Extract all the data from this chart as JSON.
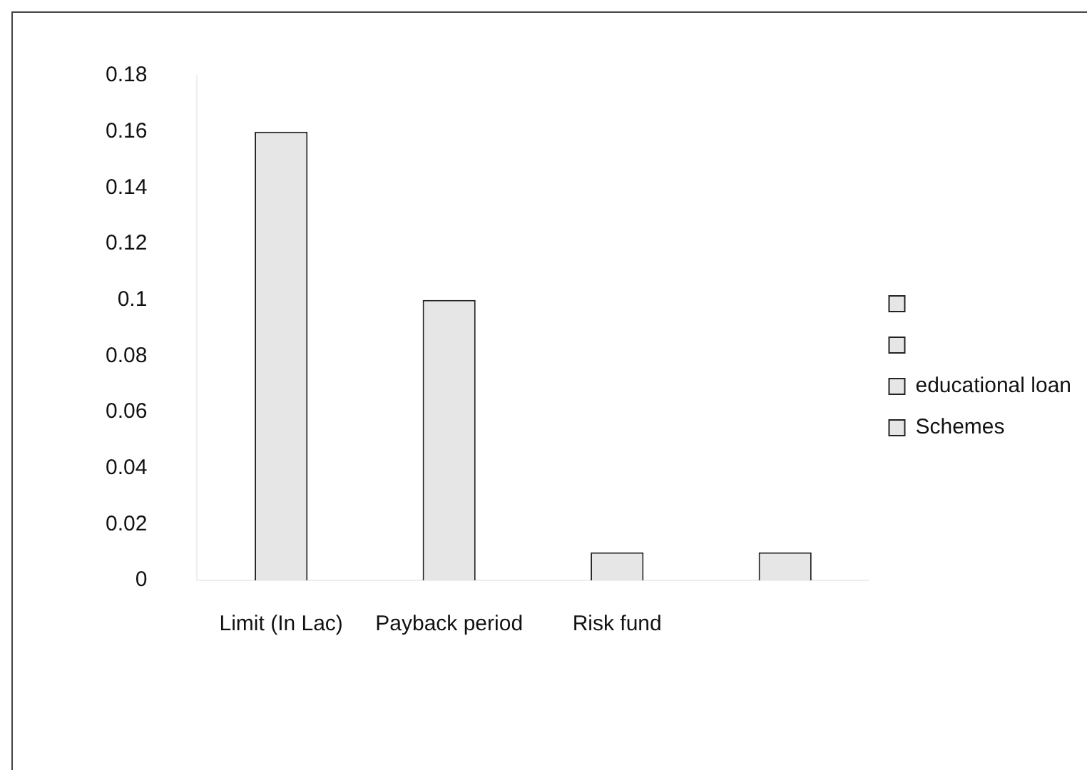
{
  "chart_data": {
    "type": "bar",
    "categories": [
      "Limit (In Lac)",
      "Payback period",
      "Risk fund",
      null
    ],
    "series": [
      {
        "color": "#e6e6e6",
        "values": [
          0.16,
          null,
          null,
          null
        ]
      },
      {
        "color": "#e6e6e6",
        "values": [
          null,
          0.1,
          null,
          null
        ]
      },
      {
        "name": "educational loan",
        "color": "#e6e6e6",
        "values": [
          null,
          null,
          0.01,
          null
        ]
      },
      {
        "name": "Schemes",
        "color": "#e6e6e6",
        "values": [
          null,
          null,
          null,
          0.01
        ]
      }
    ],
    "ylim": [
      0,
      0.18
    ],
    "yticks": [
      0,
      0.02,
      0.04,
      0.06,
      0.08,
      0.1,
      0.12,
      0.14,
      0.16,
      0.18
    ],
    "grid": false,
    "legend": "right"
  }
}
